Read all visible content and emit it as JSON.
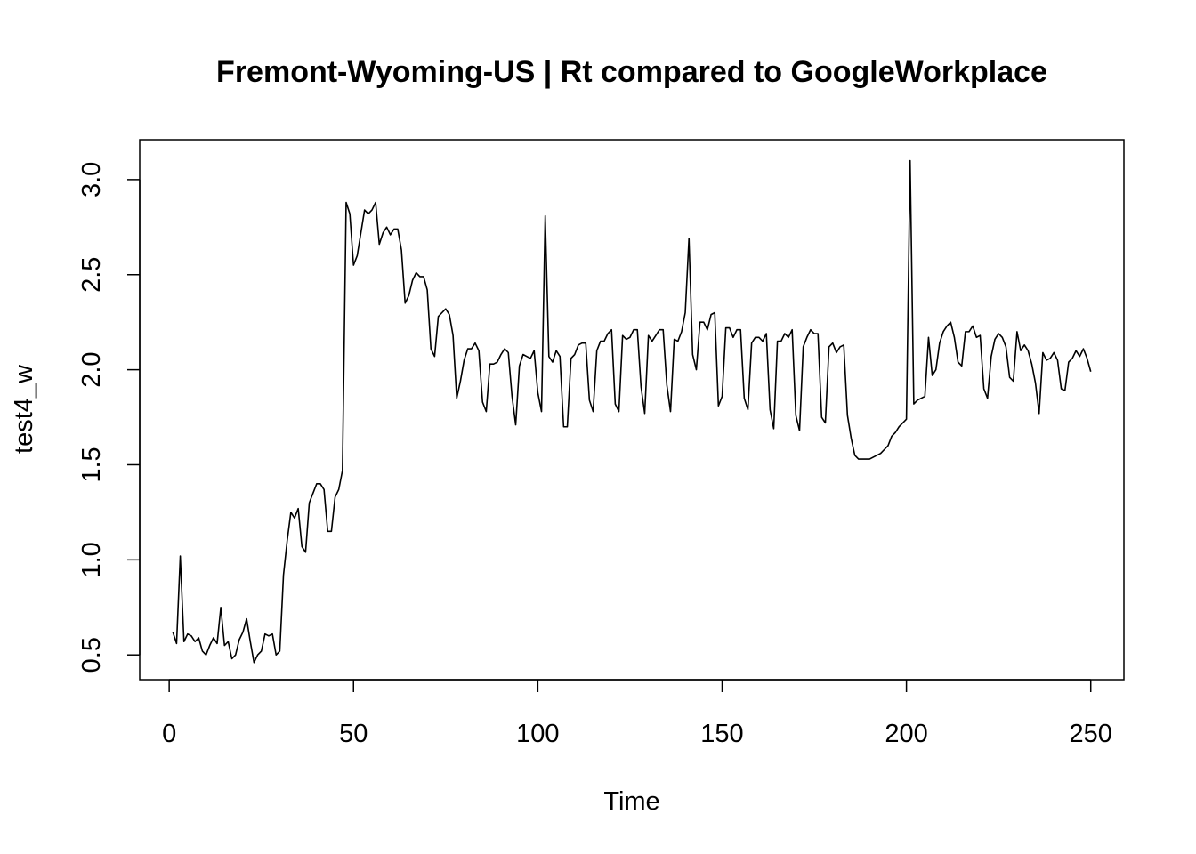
{
  "chart_data": {
    "type": "line",
    "title": "Fremont-Wyoming-US | Rt compared to GoogleWorkplace",
    "xlabel": "Time",
    "ylabel": "test4_w",
    "xlim": [
      -8,
      259
    ],
    "ylim": [
      0.37,
      3.21
    ],
    "x_ticks": [
      0,
      50,
      100,
      150,
      200,
      250
    ],
    "y_ticks": [
      0.5,
      1.0,
      1.5,
      2.0,
      2.5,
      3.0
    ],
    "x_tick_labels": [
      "0",
      "50",
      "100",
      "150",
      "200",
      "250"
    ],
    "y_tick_labels": [
      "0.5",
      "1.0",
      "1.5",
      "2.0",
      "2.5",
      "3.0"
    ],
    "grid": false,
    "legend": "none",
    "line_color": "#000000",
    "series": [
      {
        "x_start": 1,
        "values": [
          0.62,
          0.56,
          1.02,
          0.57,
          0.61,
          0.6,
          0.57,
          0.59,
          0.52,
          0.5,
          0.55,
          0.59,
          0.56,
          0.75,
          0.55,
          0.57,
          0.48,
          0.5,
          0.58,
          0.62,
          0.69,
          0.57,
          0.46,
          0.5,
          0.52,
          0.61,
          0.6,
          0.61,
          0.5,
          0.52,
          0.92,
          1.1,
          1.25,
          1.22,
          1.27,
          1.07,
          1.04,
          1.3,
          1.35,
          1.4,
          1.4,
          1.37,
          1.15,
          1.15,
          1.33,
          1.37,
          1.47,
          2.88,
          2.82,
          2.55,
          2.6,
          2.72,
          2.84,
          2.82,
          2.84,
          2.88,
          2.66,
          2.72,
          2.75,
          2.71,
          2.74,
          2.74,
          2.63,
          2.35,
          2.39,
          2.47,
          2.51,
          2.49,
          2.49,
          2.42,
          2.11,
          2.07,
          2.28,
          2.3,
          2.32,
          2.29,
          2.18,
          1.85,
          1.94,
          2.05,
          2.11,
          2.11,
          2.14,
          2.1,
          1.83,
          1.78,
          2.03,
          2.03,
          2.04,
          2.08,
          2.11,
          2.09,
          1.86,
          1.71,
          2.02,
          2.08,
          2.07,
          2.06,
          2.1,
          1.88,
          1.78,
          2.81,
          2.07,
          2.04,
          2.1,
          2.07,
          1.7,
          1.7,
          2.06,
          2.08,
          2.13,
          2.14,
          2.14,
          1.84,
          1.78,
          2.1,
          2.15,
          2.15,
          2.19,
          2.21,
          1.82,
          1.78,
          2.18,
          2.16,
          2.17,
          2.21,
          2.21,
          1.91,
          1.77,
          2.18,
          2.15,
          2.18,
          2.21,
          2.21,
          1.92,
          1.78,
          2.16,
          2.15,
          2.2,
          2.3,
          2.69,
          2.08,
          2.0,
          2.25,
          2.25,
          2.21,
          2.29,
          2.3,
          1.81,
          1.86,
          2.22,
          2.22,
          2.17,
          2.21,
          2.21,
          1.85,
          1.79,
          2.14,
          2.17,
          2.17,
          2.15,
          2.19,
          1.79,
          1.69,
          2.15,
          2.15,
          2.19,
          2.17,
          2.21,
          1.76,
          1.68,
          2.12,
          2.17,
          2.21,
          2.19,
          2.19,
          1.75,
          1.72,
          2.12,
          2.14,
          2.09,
          2.12,
          2.13,
          1.76,
          1.64,
          1.55,
          1.53,
          1.53,
          1.53,
          1.53,
          1.54,
          1.55,
          1.56,
          1.58,
          1.6,
          1.65,
          1.67,
          1.7,
          1.72,
          1.74,
          3.1,
          1.82,
          1.84,
          1.85,
          1.86,
          2.17,
          1.97,
          2.0,
          2.14,
          2.2,
          2.23,
          2.25,
          2.17,
          2.04,
          2.02,
          2.2,
          2.2,
          2.23,
          2.17,
          2.18,
          1.9,
          1.85,
          2.07,
          2.16,
          2.19,
          2.17,
          2.12,
          1.96,
          1.94,
          2.2,
          2.1,
          2.13,
          2.1,
          2.03,
          1.93,
          1.77,
          2.09,
          2.05,
          2.06,
          2.09,
          2.05,
          1.9,
          1.89,
          2.04,
          2.06,
          2.1,
          2.07,
          2.11,
          2.06,
          1.99
        ]
      }
    ]
  }
}
